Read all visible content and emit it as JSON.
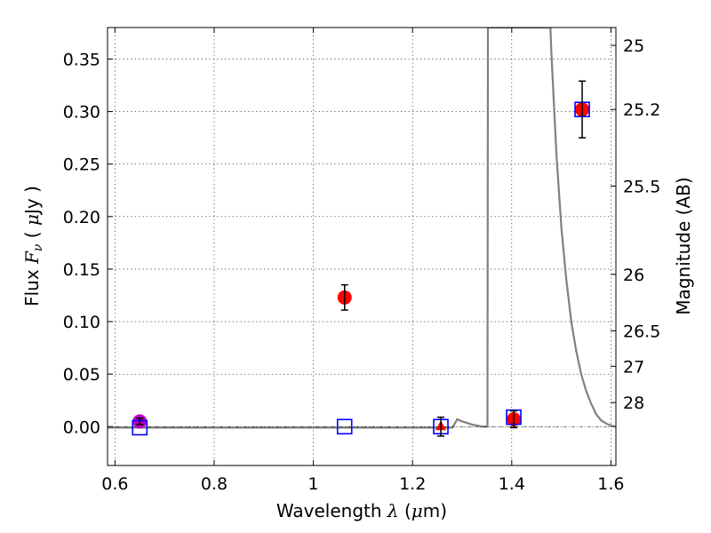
{
  "chart_data": {
    "type": "scatter",
    "title": "",
    "xlabel": {
      "prefix": "Wavelength",
      "symbol": "λ",
      "unit_open": "(",
      "unit_mu": "μ",
      "unit_rest": "m)"
    },
    "ylabel": {
      "prefix": "Flux",
      "symbol": "F",
      "subscript": "ν",
      "unit_open": "(",
      "unit_mu": "μ",
      "unit_rest": "Jy",
      "unit_close": ")"
    },
    "y2label": "Magnitude (AB)",
    "xlim": [
      0.585,
      1.61
    ],
    "ylim": [
      -0.037,
      0.38
    ],
    "grid": true,
    "xticks": [
      0.6,
      0.8,
      1.0,
      1.2,
      1.4,
      1.6
    ],
    "xtick_labels": [
      "0.6",
      "0.8",
      "1",
      "1.2",
      "1.4",
      "1.6"
    ],
    "yticks": [
      0.0,
      0.05,
      0.1,
      0.15,
      0.2,
      0.25,
      0.3,
      0.35
    ],
    "ytick_labels": [
      "0.00",
      "0.05",
      "0.10",
      "0.15",
      "0.20",
      "0.25",
      "0.30",
      "0.35"
    ],
    "magnitude_ticks": [
      {
        "label": "25",
        "flux": 0.363
      },
      {
        "label": "25.2",
        "flux": 0.302
      },
      {
        "label": "25.5",
        "flux": 0.229
      },
      {
        "label": "26",
        "flux": 0.145
      },
      {
        "label": "26.5",
        "flux": 0.0912
      },
      {
        "label": "27",
        "flux": 0.0575
      },
      {
        "label": "28",
        "flux": 0.0229
      }
    ],
    "series": [
      {
        "name": "model-spectrum",
        "kind": "line",
        "color": "#808080",
        "x": [
          0.585,
          1.28,
          1.284,
          1.29,
          1.3,
          1.32,
          1.34,
          1.349,
          1.351,
          1.352,
          1.352,
          1.478,
          1.48,
          1.49,
          1.5,
          1.51,
          1.52,
          1.53,
          1.54,
          1.55,
          1.56,
          1.57,
          1.58,
          1.59,
          1.6,
          1.61
        ],
        "y": [
          -0.001,
          -0.001,
          0.002,
          0.007,
          0.005,
          0.002,
          0.0,
          0.0,
          0.0,
          0.38,
          0.38,
          0.38,
          0.355,
          0.26,
          0.19,
          0.14,
          0.1,
          0.072,
          0.05,
          0.034,
          0.022,
          0.012,
          0.006,
          0.003,
          0.001,
          0.0
        ]
      },
      {
        "name": "observed-flux",
        "kind": "point",
        "marker": "circle",
        "color": "#ff0000",
        "x": [
          1.063,
          1.404,
          1.542
        ],
        "y": [
          0.123,
          0.007,
          0.302
        ],
        "yerr": [
          0.012,
          0.008,
          0.027
        ]
      },
      {
        "name": "optical-flux",
        "kind": "point",
        "marker": "circle",
        "color": "#bf00bf",
        "x": [
          0.65
        ],
        "y": [
          0.005
        ],
        "yerr": [
          0.003
        ]
      },
      {
        "name": "upper-limit",
        "kind": "point",
        "marker": "triangle",
        "color": "#ff0000",
        "x": [
          1.257
        ],
        "y": [
          0.0
        ],
        "yerr": [
          0.009
        ]
      },
      {
        "name": "model-photometry",
        "kind": "point",
        "marker": "square-open",
        "color": "#0000ff",
        "x": [
          0.65,
          1.063,
          1.257,
          1.404,
          1.542
        ],
        "y": [
          -0.001,
          0.0,
          0.0,
          0.009,
          0.302
        ]
      }
    ]
  }
}
